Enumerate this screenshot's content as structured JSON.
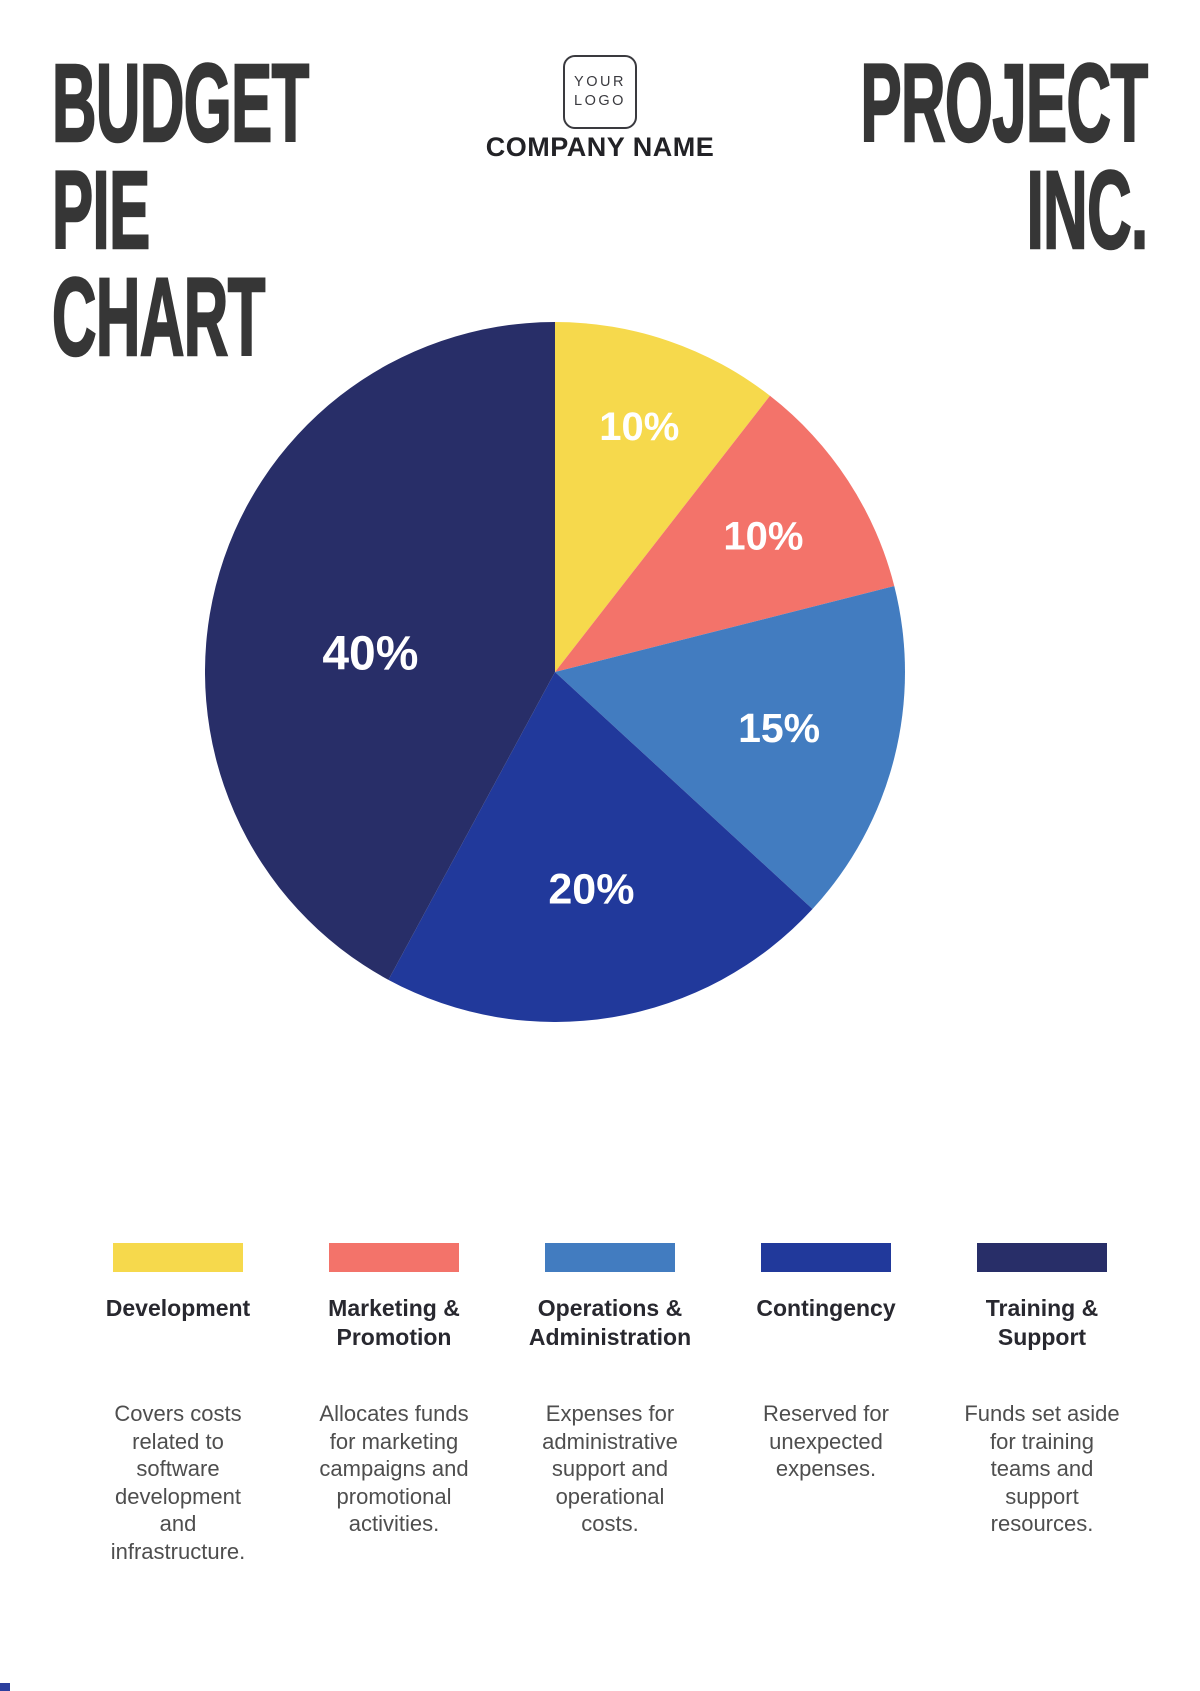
{
  "page": {
    "background": "#FFFFFF"
  },
  "header": {
    "title": "BUDGET\nPIE\nCHART",
    "logo_text": "YOUR\nLOGO",
    "company_name": "COMPANY NAME",
    "brand": "PROJECT\nINC."
  },
  "chart_data": {
    "type": "pie",
    "title": "Budget Pie Chart",
    "categories": [
      "Development",
      "Marketing & Promotion",
      "Operations & Administration",
      "Contingency",
      "Training & Support"
    ],
    "values": [
      10,
      10,
      15,
      20,
      40
    ],
    "unit": "%",
    "slice_labels": [
      "10%",
      "10%",
      "15%",
      "20%",
      "40%"
    ],
    "colors": [
      "#F6D94C",
      "#F3736A",
      "#427CC0",
      "#21399B",
      "#282E68"
    ],
    "slice_label_color": "#FFFFFF",
    "direction": "clockwise",
    "start_angle_clockwise_from_top_deg": 0,
    "layout": {
      "label_angles_deg": [
        19,
        57,
        104,
        170.5,
        275.5
      ],
      "label_radius_factors": [
        0.74,
        0.71,
        0.66,
        0.63,
        0.53
      ]
    }
  },
  "legend": {
    "items": [
      {
        "name": "Development",
        "description": "Covers costs\nrelated to\nsoftware\ndevelopment\nand\ninfrastructure."
      },
      {
        "name": "Marketing &\nPromotion",
        "description": "Allocates funds\nfor marketing\ncampaigns and\npromotional\nactivities."
      },
      {
        "name": "Operations &\nAdministration",
        "description": "Expenses for\nadministrative\nsupport and\noperational\ncosts."
      },
      {
        "name": "Contingency",
        "description": "Reserved for\nunexpected\nexpenses."
      },
      {
        "name": "Training &\nSupport",
        "description": "Funds set aside\nfor training\nteams and\nsupport\nresources."
      }
    ]
  },
  "footer": {
    "corner_mark_color": "#2C3F9E"
  }
}
